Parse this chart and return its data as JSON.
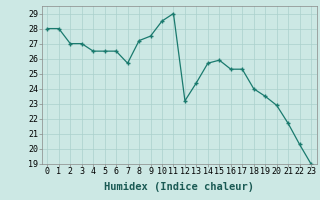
{
  "xlabel": "Humidex (Indice chaleur)",
  "x_values": [
    0,
    1,
    2,
    3,
    4,
    5,
    6,
    7,
    8,
    9,
    10,
    11,
    12,
    13,
    14,
    15,
    16,
    17,
    18,
    19,
    20,
    21,
    22,
    23
  ],
  "y_values": [
    28,
    28,
    27,
    27,
    26.5,
    26.5,
    26.5,
    25.7,
    27.2,
    27.5,
    28.5,
    29,
    23.2,
    24.4,
    25.7,
    25.9,
    25.3,
    25.3,
    24.0,
    23.5,
    22.9,
    21.7,
    20.3,
    19
  ],
  "ylim": [
    19,
    29.5
  ],
  "xlim": [
    -0.5,
    23.5
  ],
  "line_color": "#1a7a6e",
  "marker_color": "#1a7a6e",
  "bg_color": "#cce8e4",
  "grid_color": "#aad0cc",
  "axis_bg": "#cce8e4",
  "label_fontsize": 7.5,
  "tick_fontsize": 6,
  "yticks": [
    19,
    20,
    21,
    22,
    23,
    24,
    25,
    26,
    27,
    28,
    29
  ]
}
